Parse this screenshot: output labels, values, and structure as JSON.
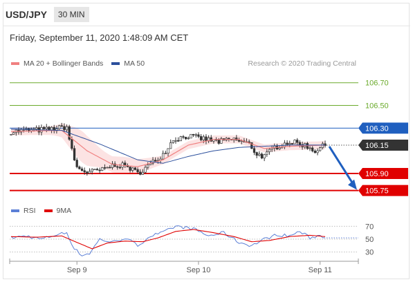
{
  "header": {
    "pair": "USD/JPY",
    "timeframe": "30 MIN"
  },
  "timestamp": "Friday, September 11, 2020 1:48:09 AM CET",
  "legend": {
    "ma20": {
      "label": "MA 20 + Bollinger Bands",
      "color": "#f08080"
    },
    "ma50": {
      "label": "MA 50",
      "color": "#2b4f9c"
    }
  },
  "credit": "Research © 2020 Trading Central",
  "rsi_legend": {
    "rsi": {
      "label": "RSI",
      "color": "#5b7fd6"
    },
    "ma9": {
      "label": "9MA",
      "color": "#e00000"
    }
  },
  "chart_data": {
    "type": "line",
    "instrument": "USD/JPY",
    "price_ylim": [
      105.65,
      106.82
    ],
    "levels": [
      {
        "value": 106.7,
        "label": "106.70",
        "kind": "target",
        "color": "#6aaa2a"
      },
      {
        "value": 106.5,
        "label": "106.50",
        "kind": "target",
        "color": "#6aaa2a"
      },
      {
        "value": 106.3,
        "label": "106.30",
        "kind": "pivot",
        "color": "#1f5fbf"
      },
      {
        "value": 106.15,
        "label": "106.15",
        "kind": "last",
        "color": "#333333"
      },
      {
        "value": 105.9,
        "label": "105.90",
        "kind": "support",
        "color": "#e00000"
      },
      {
        "value": 105.75,
        "label": "105.75",
        "kind": "support",
        "color": "#e00000"
      }
    ],
    "x_ticks": [
      {
        "label": "Sep 9",
        "index": 26
      },
      {
        "label": "Sep 10",
        "index": 74
      },
      {
        "label": "Sep 11",
        "index": 122
      }
    ],
    "n_bars": 125,
    "price_keypoints": [
      [
        0,
        106.27
      ],
      [
        8,
        106.28
      ],
      [
        16,
        106.29
      ],
      [
        22,
        106.31
      ],
      [
        24,
        106.1
      ],
      [
        26,
        105.95
      ],
      [
        30,
        105.91
      ],
      [
        36,
        105.93
      ],
      [
        41,
        105.98
      ],
      [
        46,
        105.96
      ],
      [
        50,
        105.9
      ],
      [
        55,
        105.98
      ],
      [
        60,
        106.07
      ],
      [
        64,
        106.2
      ],
      [
        70,
        106.23
      ],
      [
        77,
        106.2
      ],
      [
        82,
        106.18
      ],
      [
        88,
        106.2
      ],
      [
        94,
        106.16
      ],
      [
        97,
        106.07
      ],
      [
        100,
        106.05
      ],
      [
        104,
        106.13
      ],
      [
        110,
        106.18
      ],
      [
        116,
        106.15
      ],
      [
        120,
        106.1
      ],
      [
        124,
        106.15
      ]
    ],
    "ma20_keypoints": [
      [
        0,
        106.27
      ],
      [
        20,
        106.28
      ],
      [
        30,
        106.1
      ],
      [
        40,
        105.98
      ],
      [
        50,
        105.96
      ],
      [
        60,
        106.02
      ],
      [
        70,
        106.15
      ],
      [
        80,
        106.2
      ],
      [
        90,
        106.2
      ],
      [
        100,
        106.12
      ],
      [
        110,
        106.14
      ],
      [
        124,
        106.15
      ]
    ],
    "ma50_keypoints": [
      [
        0,
        106.29
      ],
      [
        20,
        106.28
      ],
      [
        35,
        106.16
      ],
      [
        50,
        106.02
      ],
      [
        60,
        105.99
      ],
      [
        70,
        106.05
      ],
      [
        80,
        106.1
      ],
      [
        90,
        106.13
      ],
      [
        100,
        106.14
      ],
      [
        110,
        106.15
      ],
      [
        124,
        106.15
      ]
    ],
    "forecast": {
      "from_value": 106.15,
      "to_value": 105.75,
      "direction": "down"
    },
    "rsi": {
      "ylim": [
        20,
        80
      ],
      "ticks": [
        70,
        50,
        30
      ],
      "rsi_keypoints": [
        [
          0,
          52
        ],
        [
          6,
          55
        ],
        [
          12,
          50
        ],
        [
          18,
          57
        ],
        [
          22,
          60
        ],
        [
          25,
          35
        ],
        [
          28,
          25
        ],
        [
          31,
          28
        ],
        [
          35,
          50
        ],
        [
          40,
          45
        ],
        [
          45,
          52
        ],
        [
          50,
          40
        ],
        [
          55,
          55
        ],
        [
          60,
          60
        ],
        [
          65,
          70
        ],
        [
          72,
          66
        ],
        [
          78,
          55
        ],
        [
          84,
          60
        ],
        [
          90,
          45
        ],
        [
          95,
          40
        ],
        [
          100,
          50
        ],
        [
          105,
          57
        ],
        [
          110,
          55
        ],
        [
          114,
          62
        ],
        [
          118,
          52
        ],
        [
          122,
          56
        ],
        [
          124,
          53
        ]
      ],
      "ma9_keypoints": [
        [
          0,
          54
        ],
        [
          10,
          53
        ],
        [
          20,
          55
        ],
        [
          26,
          45
        ],
        [
          32,
          35
        ],
        [
          38,
          44
        ],
        [
          45,
          47
        ],
        [
          52,
          46
        ],
        [
          58,
          52
        ],
        [
          65,
          62
        ],
        [
          72,
          65
        ],
        [
          80,
          60
        ],
        [
          88,
          54
        ],
        [
          95,
          46
        ],
        [
          102,
          48
        ],
        [
          110,
          54
        ],
        [
          118,
          56
        ],
        [
          124,
          54
        ]
      ]
    }
  }
}
